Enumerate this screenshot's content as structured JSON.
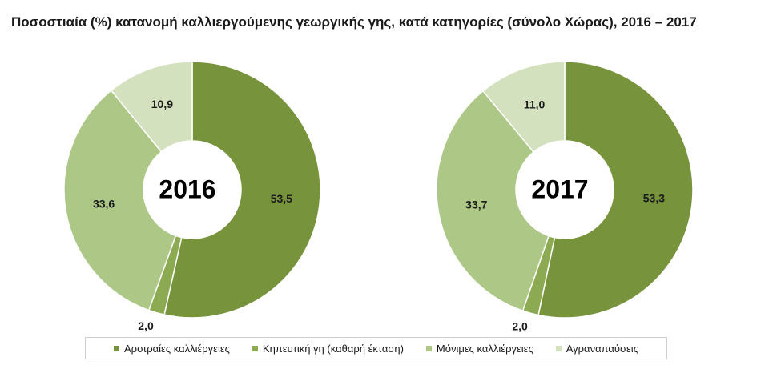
{
  "title": "Ποσοστιαία (%) κατανομή καλλιεργούμενης γεωργικής γης, κατά κατηγορίες (σύνολο Χώρας), 2016 – 2017",
  "chart_data": [
    {
      "type": "pie",
      "variant": "doughnut",
      "center_label": "2016",
      "categories": [
        "Αροτραίες καλλιέργειες",
        "Κηπευτική γη (καθαρή έκταση)",
        "Μόνιμες καλλιέργειες",
        "Αγραναπαύσεις"
      ],
      "values": [
        53.5,
        2.0,
        33.6,
        10.9
      ],
      "value_labels": [
        "53,5",
        "2,0",
        "33,6",
        "10,9"
      ]
    },
    {
      "type": "pie",
      "variant": "doughnut",
      "center_label": "2017",
      "categories": [
        "Αροτραίες καλλιέργειες",
        "Κηπευτική γη (καθαρή έκταση)",
        "Μόνιμες καλλιέργειες",
        "Αγραναπαύσεις"
      ],
      "values": [
        53.3,
        2.0,
        33.7,
        11.0
      ],
      "value_labels": [
        "53,3",
        "2,0",
        "33,7",
        "11,0"
      ]
    }
  ],
  "legend": {
    "placement": "bottom",
    "items": [
      {
        "label": "Αροτραίες καλλιέργειες",
        "color": "#77933c"
      },
      {
        "label": "Κηπευτική γη (καθαρή έκταση)",
        "color": "#8caa52"
      },
      {
        "label": "Μόνιμες καλλιέργειες",
        "color": "#adc886"
      },
      {
        "label": "Αγραναπαύσεις",
        "color": "#d4e1bf"
      }
    ]
  }
}
